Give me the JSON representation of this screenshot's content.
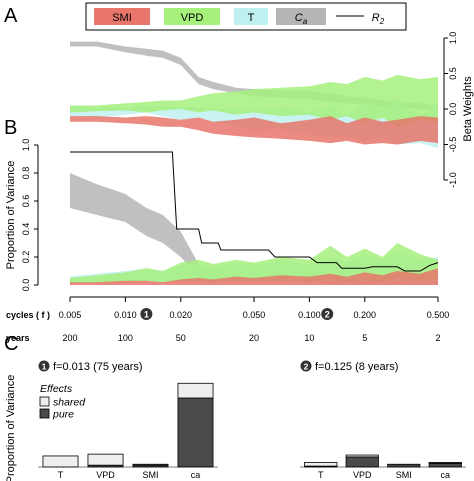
{
  "panel_labels": {
    "a": "A",
    "b": "B",
    "c": "C"
  },
  "legend": {
    "items": [
      {
        "label": "SMI",
        "color": "#e8766b"
      },
      {
        "label": "VPD",
        "color": "#a6f07c"
      },
      {
        "label": "T",
        "color": "#bff0f0"
      },
      {
        "label": "C_a",
        "color": "#b5b5b5"
      }
    ],
    "line_label": "R_2"
  },
  "chart_data": [
    {
      "id": "A",
      "type": "area",
      "title": "",
      "ylabel": "Beta Weights",
      "x_scale": "log",
      "xlim": [
        0.005,
        0.5
      ],
      "ylim": [
        -1,
        1
      ],
      "y_ticks": [
        -1,
        -0.5,
        0,
        0.5,
        1
      ],
      "y_tick_labels": [
        "-1.0",
        "-0.5",
        "0.0",
        "0.5",
        "1.0"
      ],
      "y_axis_side": "right",
      "x": [
        0.005,
        0.007,
        0.01,
        0.013,
        0.016,
        0.02,
        0.025,
        0.03,
        0.04,
        0.05,
        0.07,
        0.1,
        0.13,
        0.16,
        0.2,
        0.25,
        0.3,
        0.4,
        0.5
      ],
      "series": [
        {
          "name": "C_a",
          "color": "#b5b5b5",
          "upper": [
            0.95,
            0.95,
            0.88,
            0.85,
            0.82,
            0.72,
            0.45,
            0.38,
            0.3,
            0.28,
            0.26,
            0.25,
            0.22,
            0.18,
            0.16,
            0.12,
            0.1,
            0.08,
            0.05
          ],
          "lower": [
            0.88,
            0.88,
            0.8,
            0.75,
            0.72,
            0.62,
            0.35,
            0.28,
            0.22,
            0.18,
            0.16,
            0.14,
            0.1,
            0.08,
            0.06,
            0.04,
            0.02,
            0.0,
            -0.02
          ]
        },
        {
          "name": "T",
          "color": "#bff0f0",
          "upper": [
            0.05,
            0.03,
            0.02,
            0.05,
            0.04,
            0.03,
            0.02,
            0.0,
            0.01,
            -0.02,
            0.03,
            -0.05,
            0.05,
            -0.1,
            0.1,
            0.02,
            0.15,
            -0.1,
            0.1
          ],
          "lower": [
            -0.1,
            -0.12,
            -0.08,
            -0.05,
            -0.1,
            -0.15,
            -0.12,
            -0.18,
            -0.25,
            -0.3,
            -0.28,
            -0.35,
            -0.4,
            -0.38,
            -0.45,
            -0.42,
            -0.5,
            -0.48,
            -0.55
          ]
        },
        {
          "name": "VPD",
          "color": "#a6f07c",
          "upper": [
            0.05,
            0.05,
            0.08,
            0.1,
            0.12,
            0.12,
            0.18,
            0.22,
            0.25,
            0.28,
            0.3,
            0.32,
            0.38,
            0.35,
            0.45,
            0.4,
            0.48,
            0.42,
            0.45
          ],
          "lower": [
            -0.05,
            -0.03,
            -0.02,
            -0.05,
            -0.02,
            0.0,
            -0.05,
            -0.02,
            -0.08,
            -0.05,
            -0.1,
            -0.08,
            -0.15,
            -0.1,
            -0.2,
            -0.12,
            -0.25,
            -0.15,
            -0.2
          ]
        },
        {
          "name": "SMI",
          "color": "#e8766b",
          "upper": [
            -0.1,
            -0.1,
            -0.12,
            -0.1,
            -0.12,
            -0.15,
            -0.12,
            -0.18,
            -0.15,
            -0.12,
            -0.2,
            -0.15,
            -0.1,
            -0.2,
            -0.12,
            -0.18,
            -0.15,
            -0.1,
            -0.12
          ],
          "lower": [
            -0.18,
            -0.18,
            -0.2,
            -0.22,
            -0.25,
            -0.25,
            -0.3,
            -0.35,
            -0.38,
            -0.4,
            -0.42,
            -0.45,
            -0.48,
            -0.45,
            -0.5,
            -0.48,
            -0.5,
            -0.45,
            -0.48
          ]
        }
      ]
    },
    {
      "id": "B",
      "type": "area",
      "title": "",
      "ylabel": "Proportion of Variance",
      "x_scale": "log",
      "xlim": [
        0.005,
        0.5
      ],
      "ylim": [
        0,
        1.0
      ],
      "y_ticks": [
        0.0,
        0.2,
        0.4,
        0.6,
        0.8,
        1.0
      ],
      "y_tick_labels": [
        "0.0",
        "0.2",
        "0.4",
        "0.6",
        "0.8",
        "1.0"
      ],
      "x": [
        0.005,
        0.007,
        0.01,
        0.013,
        0.016,
        0.02,
        0.025,
        0.03,
        0.04,
        0.05,
        0.07,
        0.1,
        0.13,
        0.16,
        0.2,
        0.25,
        0.3,
        0.4,
        0.5
      ],
      "series": [
        {
          "name": "C_a",
          "color": "#b5b5b5",
          "upper": [
            0.8,
            0.72,
            0.65,
            0.55,
            0.5,
            0.38,
            0.15,
            0.08,
            0.06,
            0.06,
            0.05,
            0.06,
            0.05,
            0.05,
            0.04,
            0.05,
            0.04,
            0.05,
            0.06
          ],
          "lower": [
            0.55,
            0.5,
            0.45,
            0.35,
            0.3,
            0.2,
            0.05,
            0.03,
            0.02,
            0.02,
            0.02,
            0.02,
            0.01,
            0.01,
            0.01,
            0.01,
            0.01,
            0.01,
            0.01
          ]
        },
        {
          "name": "T",
          "color": "#bff0f0",
          "upper": [
            0.06,
            0.08,
            0.1,
            0.12,
            0.1,
            0.14,
            0.15,
            0.12,
            0.16,
            0.14,
            0.18,
            0.14,
            0.2,
            0.16,
            0.22,
            0.18,
            0.24,
            0.18,
            0.2
          ],
          "lower": [
            0.01,
            0.01,
            0.01,
            0.02,
            0.01,
            0.02,
            0.02,
            0.01,
            0.02,
            0.02,
            0.02,
            0.01,
            0.02,
            0.01,
            0.02,
            0.01,
            0.02,
            0.01,
            0.02
          ]
        },
        {
          "name": "VPD",
          "color": "#a6f07c",
          "upper": [
            0.05,
            0.07,
            0.09,
            0.12,
            0.1,
            0.16,
            0.18,
            0.15,
            0.18,
            0.16,
            0.2,
            0.18,
            0.28,
            0.2,
            0.26,
            0.2,
            0.3,
            0.22,
            0.18
          ],
          "lower": [
            0.01,
            0.01,
            0.02,
            0.03,
            0.02,
            0.03,
            0.04,
            0.02,
            0.03,
            0.02,
            0.04,
            0.02,
            0.04,
            0.02,
            0.04,
            0.02,
            0.05,
            0.03,
            0.04
          ]
        },
        {
          "name": "SMI",
          "color": "#e8766b",
          "upper": [
            0.02,
            0.02,
            0.03,
            0.03,
            0.02,
            0.04,
            0.05,
            0.04,
            0.06,
            0.05,
            0.07,
            0.06,
            0.08,
            0.06,
            0.09,
            0.07,
            0.1,
            0.08,
            0.12
          ],
          "lower": [
            0.0,
            0.0,
            0.0,
            0.0,
            0.0,
            0.0,
            0.0,
            0.0,
            0.0,
            0.0,
            0.0,
            0.0,
            0.0,
            0.0,
            0.0,
            0.0,
            0.0,
            0.0,
            0.0
          ]
        }
      ],
      "line": {
        "name": "R_2",
        "color": "#000000",
        "x": [
          0.005,
          0.018,
          0.019,
          0.025,
          0.026,
          0.032,
          0.033,
          0.06,
          0.065,
          0.1,
          0.11,
          0.14,
          0.15,
          0.2,
          0.22,
          0.3,
          0.33,
          0.4,
          0.45,
          0.5
        ],
        "y": [
          0.95,
          0.95,
          0.4,
          0.4,
          0.3,
          0.3,
          0.25,
          0.25,
          0.2,
          0.2,
          0.16,
          0.16,
          0.12,
          0.12,
          0.13,
          0.13,
          0.1,
          0.1,
          0.14,
          0.16
        ]
      },
      "x_axis": {
        "top_label": "cycles ( f )",
        "top_ticks": [
          0.005,
          0.01,
          0.02,
          0.05,
          0.1,
          0.2,
          0.5
        ],
        "top_tick_labels": [
          "0.005",
          "0.010",
          "0.020",
          "0.050",
          "0.100",
          "0.200",
          "0.500"
        ],
        "bottom_label": "years",
        "bottom_ticks": [
          0.005,
          0.01,
          0.02,
          0.05,
          0.1,
          0.2,
          0.5
        ],
        "bottom_tick_labels": [
          "200",
          "100",
          "50",
          "20",
          "10",
          "5",
          "2"
        ],
        "markers": [
          {
            "label": "1",
            "x": 0.013
          },
          {
            "label": "2",
            "x": 0.125
          }
        ]
      }
    },
    {
      "id": "C1",
      "type": "bar",
      "title": "f=0.013 (75 years)",
      "title_marker": "1",
      "ylabel": "Proportion of Variance",
      "ylim": [
        0,
        1
      ],
      "categories": [
        "T",
        "VPD",
        "SMI",
        "ca"
      ],
      "series": [
        {
          "name": "pure",
          "color": "#4a4a4a",
          "values": [
            0.0,
            0.02,
            0.02,
            0.75
          ]
        },
        {
          "name": "shared",
          "color": "#eeeeee",
          "values": [
            0.12,
            0.12,
            0.01,
            0.16
          ]
        }
      ],
      "legend": {
        "title": "Effects",
        "items": [
          "shared",
          "pure"
        ]
      }
    },
    {
      "id": "C2",
      "type": "bar",
      "title": "f=0.125 (8 years)",
      "title_marker": "2",
      "ylim": [
        0,
        1
      ],
      "categories": [
        "T",
        "VPD",
        "SMI",
        "ca"
      ],
      "series": [
        {
          "name": "pure",
          "color": "#4a4a4a",
          "values": [
            0.01,
            0.11,
            0.03,
            0.04
          ]
        },
        {
          "name": "shared",
          "color": "#eeeeee",
          "values": [
            0.04,
            0.02,
            0.0,
            0.01
          ]
        }
      ]
    }
  ]
}
